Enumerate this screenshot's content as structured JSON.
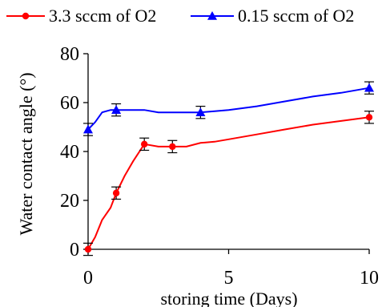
{
  "chart_data": {
    "type": "line",
    "title": "",
    "xlabel": "storing time (Days)",
    "ylabel": "Water contact angle (°)",
    "xlim": [
      0,
      10
    ],
    "ylim": [
      0,
      80
    ],
    "x_ticks": [
      0,
      5,
      10
    ],
    "y_ticks": [
      0,
      20,
      40,
      60,
      80
    ],
    "grid": false,
    "legend_position": "top",
    "series": [
      {
        "name": "3.3 sccm of O2",
        "color": "#ff0000",
        "marker": "circle",
        "line": [
          [
            0,
            0
          ],
          [
            0.25,
            5
          ],
          [
            0.5,
            12
          ],
          [
            0.8,
            17
          ],
          [
            1,
            23
          ],
          [
            1.3,
            30
          ],
          [
            1.6,
            36
          ],
          [
            2,
            43
          ],
          [
            2.5,
            42
          ],
          [
            3,
            42
          ],
          [
            3.5,
            42
          ],
          [
            4,
            43.5
          ],
          [
            4.5,
            44
          ],
          [
            5,
            45
          ],
          [
            6,
            47
          ],
          [
            7,
            49
          ],
          [
            8,
            51
          ],
          [
            9,
            52.5
          ],
          [
            10,
            54
          ]
        ],
        "points": [
          {
            "x": 0,
            "y": 0,
            "err": 2.5
          },
          {
            "x": 1,
            "y": 23,
            "err": 2.5
          },
          {
            "x": 2,
            "y": 43,
            "err": 2.5
          },
          {
            "x": 3,
            "y": 42,
            "err": 2.5
          },
          {
            "x": 10,
            "y": 54,
            "err": 2.5
          }
        ]
      },
      {
        "name": "0.15 sccm of O2",
        "color": "#0000ff",
        "marker": "triangle",
        "line": [
          [
            0,
            49
          ],
          [
            0.25,
            52
          ],
          [
            0.5,
            56
          ],
          [
            0.8,
            57
          ],
          [
            1,
            57
          ],
          [
            1.5,
            57
          ],
          [
            2,
            57
          ],
          [
            2.5,
            56
          ],
          [
            3,
            56
          ],
          [
            3.5,
            56
          ],
          [
            4,
            56
          ],
          [
            4.5,
            56.5
          ],
          [
            5,
            57
          ],
          [
            6,
            58.5
          ],
          [
            7,
            60.5
          ],
          [
            8,
            62.5
          ],
          [
            9,
            64
          ],
          [
            10,
            66
          ]
        ],
        "points": [
          {
            "x": 0,
            "y": 49,
            "err": 2.5
          },
          {
            "x": 1,
            "y": 57,
            "err": 2.5
          },
          {
            "x": 4,
            "y": 56,
            "err": 2.5
          },
          {
            "x": 10,
            "y": 66,
            "err": 2.5
          }
        ]
      }
    ]
  }
}
